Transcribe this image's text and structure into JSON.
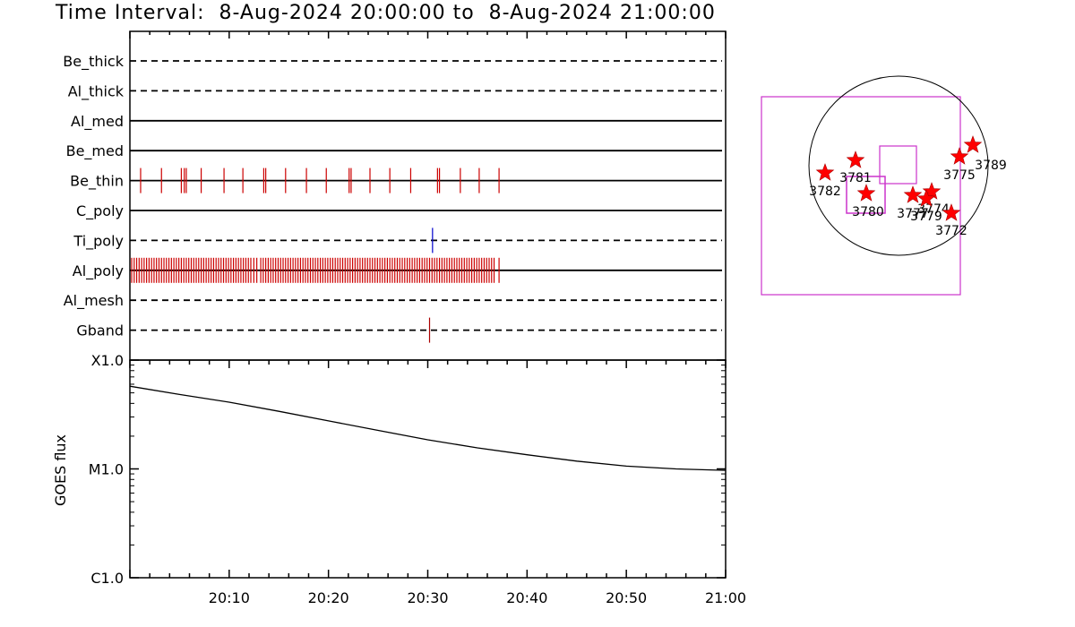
{
  "title": "Time Interval:  8-Aug-2024 20:00:00 to  8-Aug-2024 21:00:00",
  "chart_data": [
    {
      "type": "event-timeline",
      "time_range": [
        "20:00",
        "21:00"
      ],
      "channels": [
        {
          "name": "Be_thick",
          "style": "dashed",
          "color": "#000000",
          "events": []
        },
        {
          "name": "Al_thick",
          "style": "dashed",
          "color": "#000000",
          "events": []
        },
        {
          "name": "Al_med",
          "style": "solid",
          "color": "#000000",
          "events": []
        },
        {
          "name": "Be_med",
          "style": "solid",
          "color": "#000000",
          "events": []
        },
        {
          "name": "Be_thin",
          "style": "solid",
          "color": "#cc0000",
          "events": [
            0.9,
            3.0,
            5.0,
            5.3,
            5.5,
            7.0,
            9.3,
            11.2,
            13.3,
            13.5,
            15.5,
            17.6,
            19.6,
            21.9,
            22.1,
            24.0,
            26.0,
            28.1,
            30.8,
            31.0,
            33.1,
            35.0,
            37.0
          ]
        },
        {
          "name": "C_poly",
          "style": "solid",
          "color": "#000000",
          "events": []
        },
        {
          "name": "Ti_poly",
          "style": "dashed",
          "color": "#0000cc",
          "events": [
            30.3
          ]
        },
        {
          "name": "Al_poly",
          "style": "solid",
          "color": "#cc0000",
          "events": [
            0.0,
            0.25,
            0.5,
            0.75,
            1.0,
            1.25,
            1.5,
            1.75,
            2.0,
            2.25,
            2.5,
            2.75,
            3.0,
            3.25,
            3.5,
            3.75,
            4.0,
            4.25,
            4.5,
            4.75,
            5.0,
            5.25,
            5.5,
            5.75,
            6.0,
            6.25,
            6.5,
            6.75,
            7.0,
            7.25,
            7.5,
            7.75,
            8.0,
            8.25,
            8.5,
            8.75,
            9.0,
            9.25,
            9.5,
            9.75,
            10.0,
            10.25,
            10.5,
            10.75,
            11.0,
            11.25,
            11.5,
            11.75,
            12.0,
            12.3,
            12.6,
            13.0,
            13.25,
            13.5,
            13.75,
            14.0,
            14.25,
            14.5,
            14.75,
            15.0,
            15.25,
            15.5,
            15.75,
            16.0,
            16.25,
            16.5,
            16.75,
            17.0,
            17.25,
            17.5,
            17.75,
            18.0,
            18.25,
            18.5,
            18.75,
            19.0,
            19.25,
            19.5,
            19.75,
            20.0,
            20.25,
            20.5,
            20.75,
            21.0,
            21.25,
            21.5,
            21.75,
            22.0,
            22.25,
            22.5,
            22.75,
            23.0,
            23.25,
            23.5,
            23.75,
            24.0,
            24.25,
            24.5,
            24.75,
            25.0,
            25.25,
            25.5,
            25.75,
            26.0,
            26.25,
            26.5,
            26.75,
            27.0,
            27.25,
            27.5,
            27.75,
            28.0,
            28.25,
            28.5,
            28.75,
            29.0,
            29.25,
            29.5,
            29.75,
            30.0,
            30.25,
            30.5,
            30.75,
            31.0,
            31.25,
            31.5,
            31.75,
            32.0,
            32.25,
            32.5,
            32.75,
            33.0,
            33.25,
            33.5,
            33.75,
            34.0,
            34.25,
            34.5,
            34.75,
            35.0,
            35.25,
            35.5,
            35.75,
            36.0,
            36.25,
            36.5,
            37.0
          ]
        },
        {
          "name": "Al_mesh",
          "style": "dashed",
          "color": "#000000",
          "events": []
        },
        {
          "name": "Gband",
          "style": "dashed",
          "color": "#aa0000",
          "events": [
            30.0
          ]
        }
      ]
    },
    {
      "type": "line",
      "ylabel": "GOES flux",
      "yscale": "log",
      "yticks": [
        {
          "label": "X1.0",
          "value": 0.0001
        },
        {
          "label": "M1.0",
          "value": 1e-05
        },
        {
          "label": "C1.0",
          "value": 1e-06
        }
      ],
      "ylim": [
        1e-06,
        0.0001
      ],
      "xlim": [
        0,
        60
      ],
      "xticks": [
        {
          "label": "20:10",
          "minute": 10
        },
        {
          "label": "20:20",
          "minute": 20
        },
        {
          "label": "20:30",
          "minute": 30
        },
        {
          "label": "20:40",
          "minute": 40
        },
        {
          "label": "20:50",
          "minute": 50
        },
        {
          "label": "21:00",
          "minute": 60
        }
      ],
      "series": [
        {
          "color": "#000000",
          "x": [
            0,
            5,
            10,
            15,
            20,
            25,
            30,
            35,
            40,
            45,
            50,
            55,
            60
          ],
          "y": [
            5.75e-05,
            4.83e-05,
            4.1e-05,
            3.38e-05,
            2.76e-05,
            2.26e-05,
            1.85e-05,
            1.56e-05,
            1.35e-05,
            1.18e-05,
            1.06e-05,
            1e-05,
            9.7e-06
          ]
        }
      ]
    },
    {
      "type": "scatter",
      "markers": "star",
      "points": [
        {
          "label": "3789",
          "x": 0.83,
          "y": 0.23
        },
        {
          "label": "3775",
          "x": 0.68,
          "y": 0.1
        },
        {
          "label": "3781",
          "x": -0.48,
          "y": 0.06
        },
        {
          "label": "3782",
          "x": -0.82,
          "y": -0.08
        },
        {
          "label": "3780",
          "x": -0.36,
          "y": -0.31
        },
        {
          "label": "3777",
          "x": 0.16,
          "y": -0.33
        },
        {
          "label": "3774",
          "x": 0.37,
          "y": -0.29
        },
        {
          "label": "3779",
          "x": 0.31,
          "y": -0.37
        },
        {
          "label": "3772",
          "x": 0.59,
          "y": -0.53
        }
      ]
    }
  ]
}
